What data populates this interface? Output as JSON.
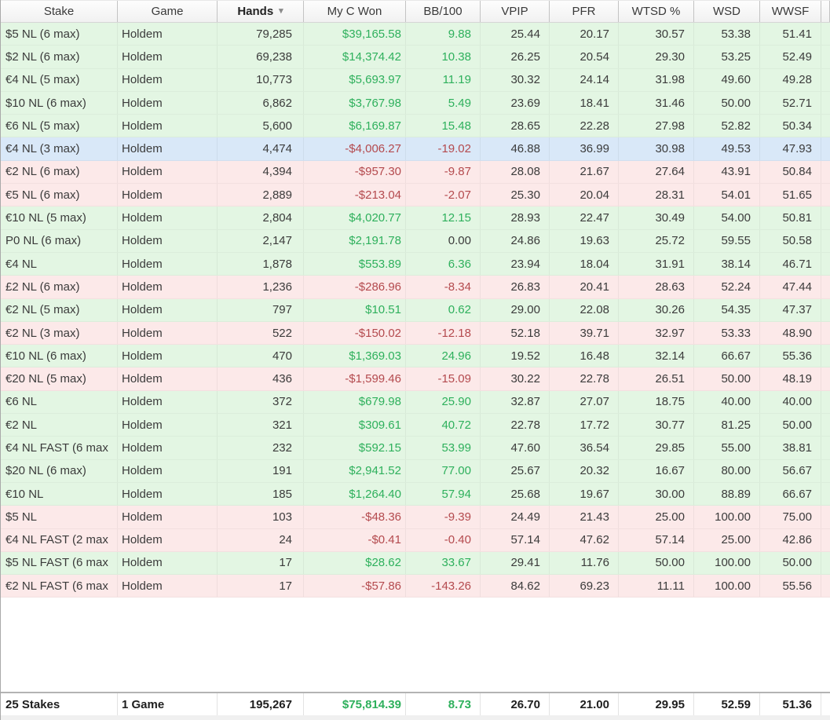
{
  "columns": [
    {
      "key": "stake",
      "label": "Stake"
    },
    {
      "key": "game",
      "label": "Game"
    },
    {
      "key": "hands",
      "label": "Hands",
      "sorted": "desc"
    },
    {
      "key": "won",
      "label": "My C Won"
    },
    {
      "key": "bb100",
      "label": "BB/100"
    },
    {
      "key": "vpip",
      "label": "VPIP"
    },
    {
      "key": "pfr",
      "label": "PFR"
    },
    {
      "key": "wtsd",
      "label": "WTSD %"
    },
    {
      "key": "wsd",
      "label": "WSD"
    },
    {
      "key": "wwsf",
      "label": "WWSF"
    }
  ],
  "sort_icon": "▾",
  "rows": [
    {
      "stake": "$5 NL (6 max)",
      "game": "Holdem",
      "hands": "79,285",
      "won": "$39,165.58",
      "bb100": "9.88",
      "vpip": "25.44",
      "pfr": "20.17",
      "wtsd": "30.57",
      "wsd": "53.38",
      "wwsf": "51.41",
      "state": "win"
    },
    {
      "stake": "$2 NL (6 max)",
      "game": "Holdem",
      "hands": "69,238",
      "won": "$14,374.42",
      "bb100": "10.38",
      "vpip": "26.25",
      "pfr": "20.54",
      "wtsd": "29.30",
      "wsd": "53.25",
      "wwsf": "52.49",
      "state": "win"
    },
    {
      "stake": "€4 NL (5 max)",
      "game": "Holdem",
      "hands": "10,773",
      "won": "$5,693.97",
      "bb100": "11.19",
      "vpip": "30.32",
      "pfr": "24.14",
      "wtsd": "31.98",
      "wsd": "49.60",
      "wwsf": "49.28",
      "state": "win"
    },
    {
      "stake": "$10 NL (6 max)",
      "game": "Holdem",
      "hands": "6,862",
      "won": "$3,767.98",
      "bb100": "5.49",
      "vpip": "23.69",
      "pfr": "18.41",
      "wtsd": "31.46",
      "wsd": "50.00",
      "wwsf": "52.71",
      "state": "win"
    },
    {
      "stake": "€6 NL (5 max)",
      "game": "Holdem",
      "hands": "5,600",
      "won": "$6,169.87",
      "bb100": "15.48",
      "vpip": "28.65",
      "pfr": "22.28",
      "wtsd": "27.98",
      "wsd": "52.82",
      "wwsf": "50.34",
      "state": "win"
    },
    {
      "stake": "€4 NL (3 max)",
      "game": "Holdem",
      "hands": "4,474",
      "won": "-$4,006.27",
      "bb100": "-19.02",
      "vpip": "46.88",
      "pfr": "36.99",
      "wtsd": "30.98",
      "wsd": "49.53",
      "wwsf": "47.93",
      "state": "selected"
    },
    {
      "stake": "€2 NL (6 max)",
      "game": "Holdem",
      "hands": "4,394",
      "won": "-$957.30",
      "bb100": "-9.87",
      "vpip": "28.08",
      "pfr": "21.67",
      "wtsd": "27.64",
      "wsd": "43.91",
      "wwsf": "50.84",
      "state": "loss"
    },
    {
      "stake": "€5 NL (6 max)",
      "game": "Holdem",
      "hands": "2,889",
      "won": "-$213.04",
      "bb100": "-2.07",
      "vpip": "25.30",
      "pfr": "20.04",
      "wtsd": "28.31",
      "wsd": "54.01",
      "wwsf": "51.65",
      "state": "loss"
    },
    {
      "stake": "€10 NL (5 max)",
      "game": "Holdem",
      "hands": "2,804",
      "won": "$4,020.77",
      "bb100": "12.15",
      "vpip": "28.93",
      "pfr": "22.47",
      "wtsd": "30.49",
      "wsd": "54.00",
      "wwsf": "50.81",
      "state": "win"
    },
    {
      "stake": "P0 NL (6 max)",
      "game": "Holdem",
      "hands": "2,147",
      "won": "$2,191.78",
      "bb100": "0.00",
      "vpip": "24.86",
      "pfr": "19.63",
      "wtsd": "25.72",
      "wsd": "59.55",
      "wwsf": "50.58",
      "state": "win"
    },
    {
      "stake": "€4 NL",
      "game": "Holdem",
      "hands": "1,878",
      "won": "$553.89",
      "bb100": "6.36",
      "vpip": "23.94",
      "pfr": "18.04",
      "wtsd": "31.91",
      "wsd": "38.14",
      "wwsf": "46.71",
      "state": "win"
    },
    {
      "stake": "£2 NL (6 max)",
      "game": "Holdem",
      "hands": "1,236",
      "won": "-$286.96",
      "bb100": "-8.34",
      "vpip": "26.83",
      "pfr": "20.41",
      "wtsd": "28.63",
      "wsd": "52.24",
      "wwsf": "47.44",
      "state": "loss"
    },
    {
      "stake": "€2 NL (5 max)",
      "game": "Holdem",
      "hands": "797",
      "won": "$10.51",
      "bb100": "0.62",
      "vpip": "29.00",
      "pfr": "22.08",
      "wtsd": "30.26",
      "wsd": "54.35",
      "wwsf": "47.37",
      "state": "win"
    },
    {
      "stake": "€2 NL (3 max)",
      "game": "Holdem",
      "hands": "522",
      "won": "-$150.02",
      "bb100": "-12.18",
      "vpip": "52.18",
      "pfr": "39.71",
      "wtsd": "32.97",
      "wsd": "53.33",
      "wwsf": "48.90",
      "state": "loss"
    },
    {
      "stake": "€10 NL (6 max)",
      "game": "Holdem",
      "hands": "470",
      "won": "$1,369.03",
      "bb100": "24.96",
      "vpip": "19.52",
      "pfr": "16.48",
      "wtsd": "32.14",
      "wsd": "66.67",
      "wwsf": "55.36",
      "state": "win"
    },
    {
      "stake": "€20 NL (5 max)",
      "game": "Holdem",
      "hands": "436",
      "won": "-$1,599.46",
      "bb100": "-15.09",
      "vpip": "30.22",
      "pfr": "22.78",
      "wtsd": "26.51",
      "wsd": "50.00",
      "wwsf": "48.19",
      "state": "loss"
    },
    {
      "stake": "€6 NL",
      "game": "Holdem",
      "hands": "372",
      "won": "$679.98",
      "bb100": "25.90",
      "vpip": "32.87",
      "pfr": "27.07",
      "wtsd": "18.75",
      "wsd": "40.00",
      "wwsf": "40.00",
      "state": "win"
    },
    {
      "stake": "€2 NL",
      "game": "Holdem",
      "hands": "321",
      "won": "$309.61",
      "bb100": "40.72",
      "vpip": "22.78",
      "pfr": "17.72",
      "wtsd": "30.77",
      "wsd": "81.25",
      "wwsf": "50.00",
      "state": "win"
    },
    {
      "stake": "€4 NL FAST (6 max",
      "game": "Holdem",
      "hands": "232",
      "won": "$592.15",
      "bb100": "53.99",
      "vpip": "47.60",
      "pfr": "36.54",
      "wtsd": "29.85",
      "wsd": "55.00",
      "wwsf": "38.81",
      "state": "win"
    },
    {
      "stake": "$20 NL (6 max)",
      "game": "Holdem",
      "hands": "191",
      "won": "$2,941.52",
      "bb100": "77.00",
      "vpip": "25.67",
      "pfr": "20.32",
      "wtsd": "16.67",
      "wsd": "80.00",
      "wwsf": "56.67",
      "state": "win"
    },
    {
      "stake": "€10 NL",
      "game": "Holdem",
      "hands": "185",
      "won": "$1,264.40",
      "bb100": "57.94",
      "vpip": "25.68",
      "pfr": "19.67",
      "wtsd": "30.00",
      "wsd": "88.89",
      "wwsf": "66.67",
      "state": "win"
    },
    {
      "stake": "$5 NL",
      "game": "Holdem",
      "hands": "103",
      "won": "-$48.36",
      "bb100": "-9.39",
      "vpip": "24.49",
      "pfr": "21.43",
      "wtsd": "25.00",
      "wsd": "100.00",
      "wwsf": "75.00",
      "state": "loss"
    },
    {
      "stake": "€4 NL FAST (2 max",
      "game": "Holdem",
      "hands": "24",
      "won": "-$0.41",
      "bb100": "-0.40",
      "vpip": "57.14",
      "pfr": "47.62",
      "wtsd": "57.14",
      "wsd": "25.00",
      "wwsf": "42.86",
      "state": "loss"
    },
    {
      "stake": "$5 NL FAST (6 max",
      "game": "Holdem",
      "hands": "17",
      "won": "$28.62",
      "bb100": "33.67",
      "vpip": "29.41",
      "pfr": "11.76",
      "wtsd": "50.00",
      "wsd": "100.00",
      "wwsf": "50.00",
      "state": "win"
    },
    {
      "stake": "€2 NL FAST (6 max",
      "game": "Holdem",
      "hands": "17",
      "won": "-$57.86",
      "bb100": "-143.26",
      "vpip": "84.62",
      "pfr": "69.23",
      "wtsd": "11.11",
      "wsd": "100.00",
      "wwsf": "55.56",
      "state": "loss"
    }
  ],
  "footer": {
    "stakes": "25 Stakes",
    "games": "1 Game",
    "hands": "195,267",
    "won": "$75,814.39",
    "bb100": "8.73",
    "vpip": "26.70",
    "pfr": "21.00",
    "wtsd": "29.95",
    "wsd": "52.59",
    "wwsf": "51.36"
  },
  "colors": {
    "positive_text": "#2eb05c",
    "negative_text": "#b44a4e",
    "win_row_bg": "#e3f6e3",
    "loss_row_bg": "#fce9e9",
    "selected_row_bg": "#d9e8f8"
  }
}
